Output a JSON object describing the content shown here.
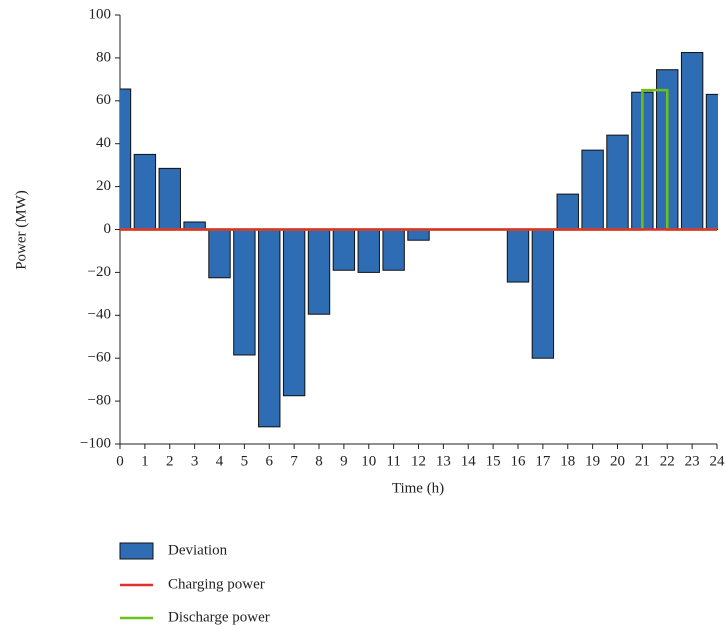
{
  "chart_data": {
    "type": "bar",
    "x_label": "Time (h)",
    "y_label": "Power (MW)",
    "x": [
      0,
      1,
      2,
      3,
      4,
      5,
      6,
      7,
      8,
      9,
      10,
      11,
      12,
      13,
      14,
      15,
      16,
      17,
      18,
      19,
      20,
      21,
      22,
      23,
      24
    ],
    "series": [
      {
        "name": "Deviation",
        "type": "bar",
        "color": "#2e6db3",
        "x": [
          0,
          1,
          2,
          3,
          4,
          5,
          6,
          7,
          8,
          9,
          10,
          11,
          12,
          13,
          14,
          15,
          16,
          17,
          18,
          19,
          20,
          21,
          22,
          23,
          24
        ],
        "values": [
          65.5,
          35,
          28.5,
          3.5,
          -22.5,
          -58.5,
          -92,
          -77.5,
          -39.5,
          -19,
          -20,
          -19,
          -5,
          0,
          0,
          0,
          -24.5,
          -60,
          16.5,
          37,
          44,
          64,
          74.5,
          82.5,
          63
        ]
      },
      {
        "name": "Charging power",
        "type": "line",
        "color": "#e0302a",
        "x": [
          0,
          24
        ],
        "values": [
          0,
          0
        ]
      },
      {
        "name": "Discharge power",
        "type": "line",
        "color": "#6cc01a",
        "x": [
          0,
          21,
          21,
          22,
          22,
          24
        ],
        "values": [
          0,
          0,
          65,
          65,
          0,
          0
        ]
      }
    ],
    "xlim": [
      0,
      24
    ],
    "xticks": [
      0,
      1,
      2,
      3,
      4,
      5,
      6,
      7,
      8,
      9,
      10,
      11,
      12,
      13,
      14,
      15,
      16,
      17,
      18,
      19,
      20,
      21,
      22,
      23,
      24
    ],
    "ylim": [
      -100,
      100
    ],
    "yticks": [
      {
        "value": -100,
        "label": "−100"
      },
      {
        "value": -80,
        "label": "−80"
      },
      {
        "value": -60,
        "label": "−60"
      },
      {
        "value": -40,
        "label": "−40"
      },
      {
        "value": -20,
        "label": "−20"
      },
      0,
      20,
      40,
      60,
      80,
      100
    ],
    "legend": "bottom-left"
  }
}
